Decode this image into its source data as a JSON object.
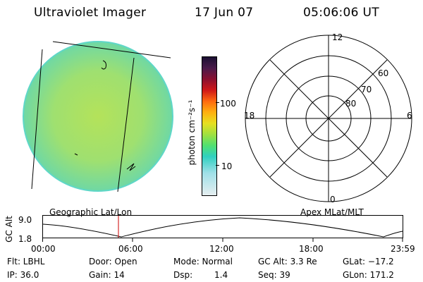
{
  "header": {
    "instrument": "Ultraviolet Imager",
    "date": "17 Jun 07",
    "time": "05:06:06 UT"
  },
  "colorbar": {
    "label": "photon cm⁻²s⁻¹",
    "ticks": [
      "100",
      "10"
    ]
  },
  "polar_plot": {
    "mlt_labels": {
      "top": "12",
      "left": "18",
      "right": "6",
      "bottom": "0"
    },
    "lat_labels": [
      "60",
      "70",
      "80"
    ]
  },
  "timeline": {
    "left_title": "Geographic Lat/Lon",
    "right_title": "Apex MLat/MLT",
    "axis_label": "GC Alt",
    "y_ticks": [
      "9.0",
      "1.8"
    ],
    "time_ticks": [
      "00:00",
      "06:00",
      "12:00",
      "18:00",
      "23:59"
    ],
    "marker_time": "05:06",
    "colors": {
      "marker": "#cc0000",
      "curve": "#000000"
    }
  },
  "info": {
    "row1": {
      "flt": "Flt: LBHL",
      "door": "Door: Open",
      "mode": "Mode: Normal",
      "gcalt": "GC Alt: 3.3 Re",
      "glat": "GLat: −17.2"
    },
    "row2": {
      "ip": "IP: 36.0",
      "gain": "Gain: 14",
      "dsp_label": "Dsp:",
      "dsp_value": "1.4",
      "seq": "Seq: 39",
      "glon": "GLon: 171.2"
    }
  },
  "colors": {
    "disk_fill": "#9ee060",
    "disk_edge": "#5fd7c8",
    "colorbar_top": "#1a1032",
    "colorbar_bottom": "#e6eef0"
  }
}
